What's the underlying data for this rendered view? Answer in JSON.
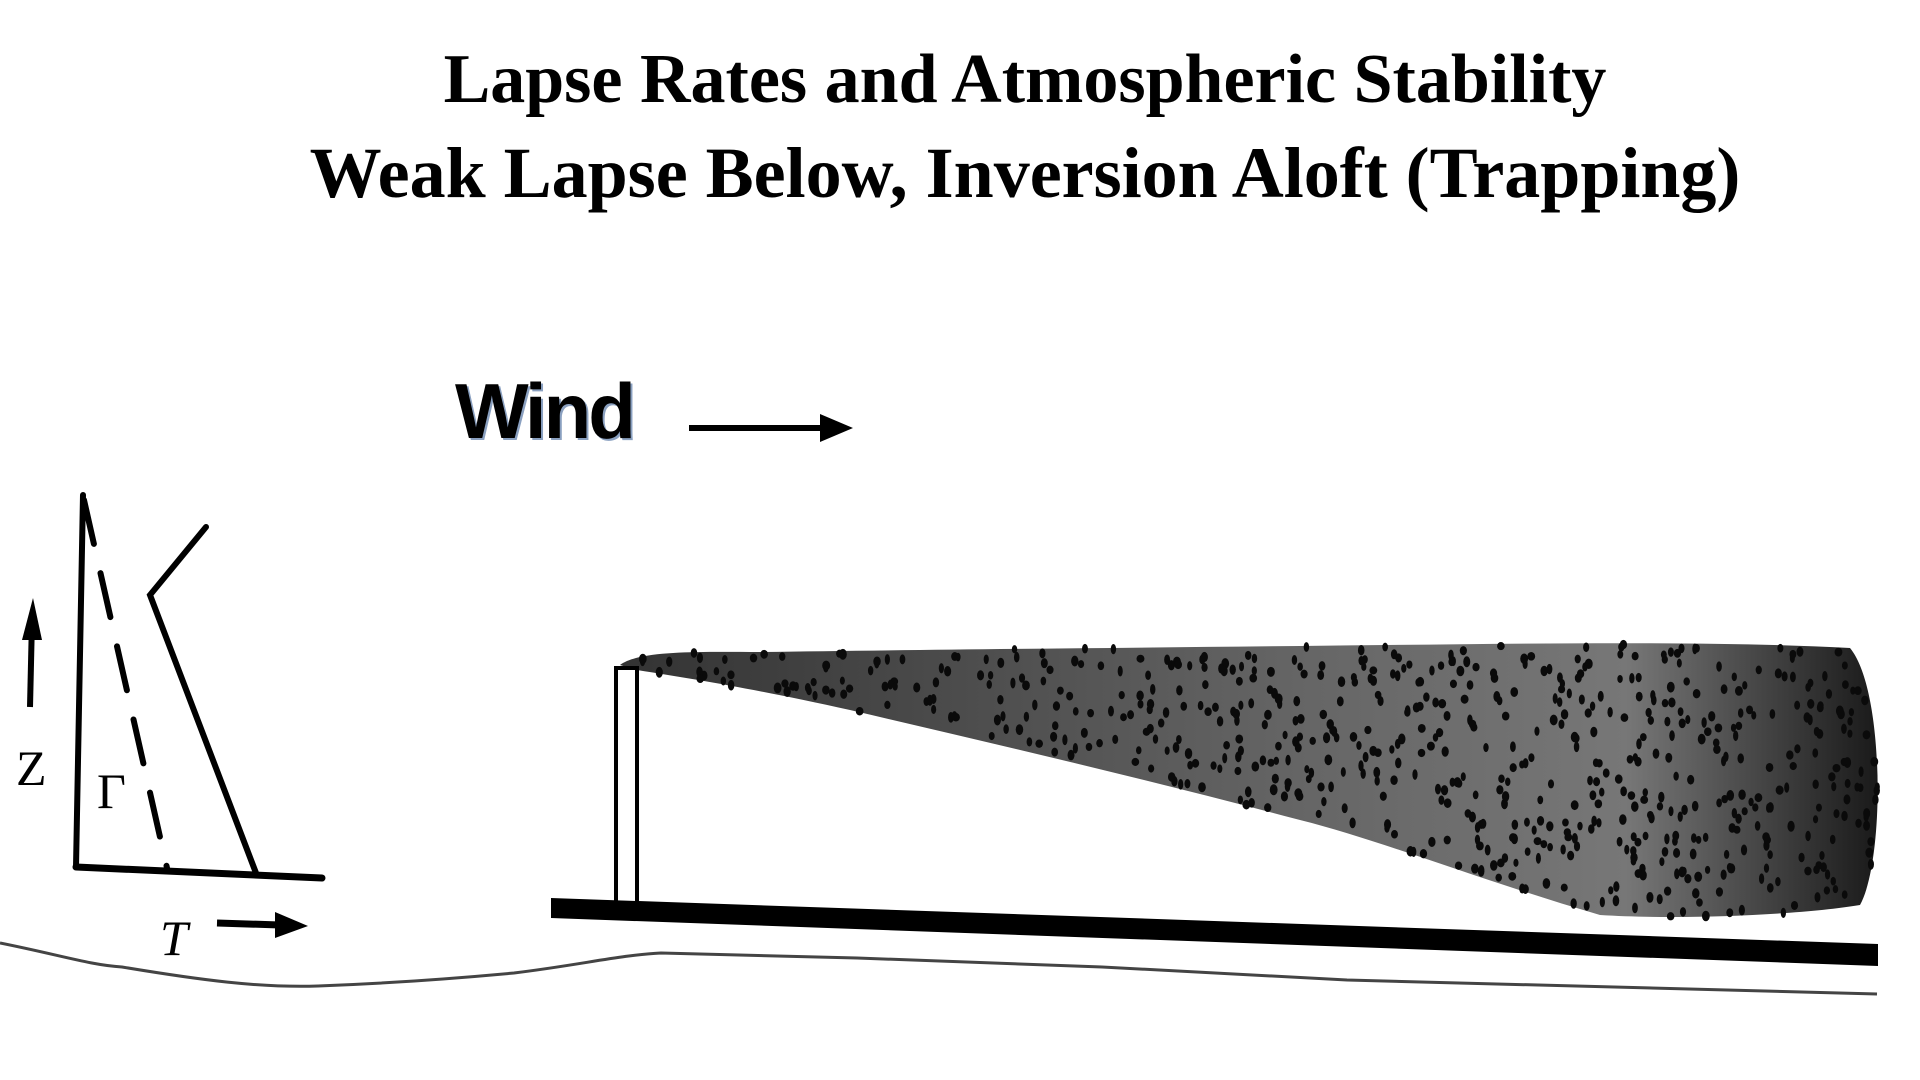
{
  "title": {
    "line1": "Lapse Rates and Atmospheric Stability",
    "line2": "Weak Lapse Below, Inversion Aloft (Trapping)"
  },
  "wind": {
    "label": "Wind",
    "icon": "right-arrow-icon"
  },
  "profile": {
    "z_label": "Z",
    "gamma_label": "Γ",
    "t_label": "T"
  },
  "colors": {
    "ink": "#000000",
    "plume": "#3a3a3a"
  }
}
